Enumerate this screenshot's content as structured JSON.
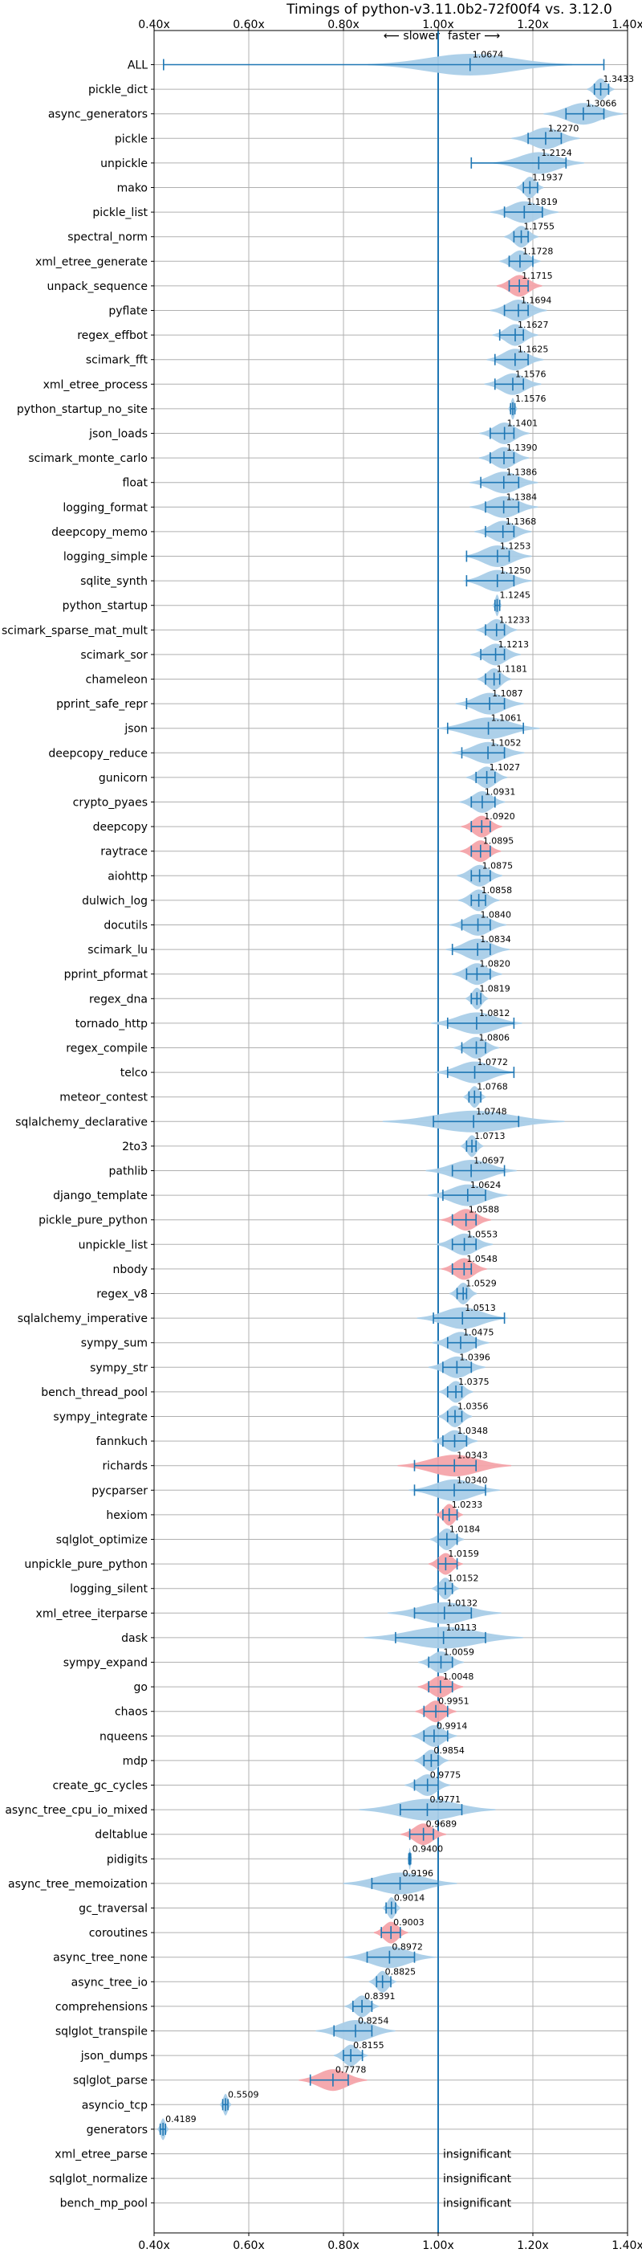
{
  "chart_data": {
    "type": "violin",
    "title": "Timings of python-v3.11.0b2-72f00f4 vs. 3.12.0",
    "direction_labels": {
      "slower": "⟵ slower",
      "faster": "faster ⟶"
    },
    "xlim": [
      0.4,
      1.4
    ],
    "xticks": [
      0.4,
      0.6,
      0.8,
      1.0,
      1.2,
      1.4
    ],
    "xtick_labels": [
      "0.40x",
      "0.60x",
      "0.80x",
      "1.00x",
      "1.20x",
      "1.40x"
    ],
    "reference": 1.0,
    "grid": true,
    "colors": {
      "faster": "#a9cde8",
      "slower": "#f4a4aa",
      "line": "#1f77b4",
      "grid": "#b0b0b0"
    },
    "insignificant_label": "insignificant",
    "benchmarks": [
      {
        "name": "ALL",
        "value": 1.0674,
        "low": 0.42,
        "high": 1.35,
        "spread": 0.09,
        "status": "faster",
        "label": "1.0674"
      },
      {
        "name": "pickle_dict",
        "value": 1.3433,
        "low": 1.33,
        "high": 1.36,
        "spread": 0.012,
        "status": "faster",
        "label": "1.3433"
      },
      {
        "name": "async_generators",
        "value": 1.3066,
        "low": 1.27,
        "high": 1.35,
        "spread": 0.035,
        "status": "faster",
        "label": "1.3066"
      },
      {
        "name": "pickle",
        "value": 1.227,
        "low": 1.19,
        "high": 1.26,
        "spread": 0.03,
        "status": "faster",
        "label": "1.2270"
      },
      {
        "name": "unpickle",
        "value": 1.2124,
        "low": 1.07,
        "high": 1.27,
        "spread": 0.04,
        "status": "faster",
        "label": "1.2124"
      },
      {
        "name": "mako",
        "value": 1.1937,
        "low": 1.18,
        "high": 1.21,
        "spread": 0.012,
        "status": "faster",
        "label": "1.1937"
      },
      {
        "name": "pickle_list",
        "value": 1.1819,
        "low": 1.14,
        "high": 1.22,
        "spread": 0.03,
        "status": "faster",
        "label": "1.1819"
      },
      {
        "name": "spectral_norm",
        "value": 1.1755,
        "low": 1.16,
        "high": 1.19,
        "spread": 0.015,
        "status": "faster",
        "label": "1.1755"
      },
      {
        "name": "xml_etree_generate",
        "value": 1.1728,
        "low": 1.15,
        "high": 1.2,
        "spread": 0.018,
        "status": "faster",
        "label": "1.1728"
      },
      {
        "name": "unpack_sequence",
        "value": 1.1715,
        "low": 1.15,
        "high": 1.19,
        "spread": 0.02,
        "status": "slower",
        "label": "1.1715"
      },
      {
        "name": "pyflate",
        "value": 1.1694,
        "low": 1.14,
        "high": 1.19,
        "spread": 0.025,
        "status": "faster",
        "label": "1.1694"
      },
      {
        "name": "regex_effbot",
        "value": 1.1627,
        "low": 1.13,
        "high": 1.18,
        "spread": 0.02,
        "status": "faster",
        "label": "1.1627"
      },
      {
        "name": "scimark_fft",
        "value": 1.1625,
        "low": 1.12,
        "high": 1.19,
        "spread": 0.025,
        "status": "faster",
        "label": "1.1625"
      },
      {
        "name": "xml_etree_process",
        "value": 1.1576,
        "low": 1.12,
        "high": 1.18,
        "spread": 0.025,
        "status": "faster",
        "label": "1.1576"
      },
      {
        "name": "python_startup_no_site",
        "value": 1.1576,
        "low": 1.153,
        "high": 1.162,
        "spread": 0.004,
        "status": "faster",
        "label": "1.1576"
      },
      {
        "name": "json_loads",
        "value": 1.1401,
        "low": 1.11,
        "high": 1.16,
        "spread": 0.022,
        "status": "faster",
        "label": "1.1401"
      },
      {
        "name": "scimark_monte_carlo",
        "value": 1.139,
        "low": 1.11,
        "high": 1.16,
        "spread": 0.022,
        "status": "faster",
        "label": "1.1390"
      },
      {
        "name": "float",
        "value": 1.1386,
        "low": 1.09,
        "high": 1.17,
        "spread": 0.03,
        "status": "faster",
        "label": "1.1386"
      },
      {
        "name": "logging_format",
        "value": 1.1384,
        "low": 1.1,
        "high": 1.17,
        "spread": 0.03,
        "status": "faster",
        "label": "1.1384"
      },
      {
        "name": "deepcopy_memo",
        "value": 1.1368,
        "low": 1.1,
        "high": 1.16,
        "spread": 0.025,
        "status": "faster",
        "label": "1.1368"
      },
      {
        "name": "logging_simple",
        "value": 1.1253,
        "low": 1.06,
        "high": 1.15,
        "spread": 0.03,
        "status": "faster",
        "label": "1.1253"
      },
      {
        "name": "sqlite_synth",
        "value": 1.125,
        "low": 1.06,
        "high": 1.16,
        "spread": 0.03,
        "status": "faster",
        "label": "1.1250"
      },
      {
        "name": "python_startup",
        "value": 1.1245,
        "low": 1.12,
        "high": 1.13,
        "spread": 0.004,
        "status": "faster",
        "label": "1.1245"
      },
      {
        "name": "scimark_sparse_mat_mult",
        "value": 1.1233,
        "low": 1.1,
        "high": 1.14,
        "spread": 0.018,
        "status": "faster",
        "label": "1.1233"
      },
      {
        "name": "scimark_sor",
        "value": 1.1213,
        "low": 1.09,
        "high": 1.14,
        "spread": 0.022,
        "status": "faster",
        "label": "1.1213"
      },
      {
        "name": "chameleon",
        "value": 1.1181,
        "low": 1.1,
        "high": 1.13,
        "spread": 0.015,
        "status": "faster",
        "label": "1.1181"
      },
      {
        "name": "pprint_safe_repr",
        "value": 1.1087,
        "low": 1.06,
        "high": 1.14,
        "spread": 0.03,
        "status": "faster",
        "label": "1.1087"
      },
      {
        "name": "json",
        "value": 1.1061,
        "low": 1.02,
        "high": 1.18,
        "spread": 0.045,
        "status": "faster",
        "label": "1.1061"
      },
      {
        "name": "deepcopy_reduce",
        "value": 1.1052,
        "low": 1.05,
        "high": 1.14,
        "spread": 0.032,
        "status": "faster",
        "label": "1.1052"
      },
      {
        "name": "gunicorn",
        "value": 1.1027,
        "low": 1.08,
        "high": 1.12,
        "spread": 0.018,
        "status": "faster",
        "label": "1.1027"
      },
      {
        "name": "crypto_pyaes",
        "value": 1.0931,
        "low": 1.07,
        "high": 1.12,
        "spread": 0.02,
        "status": "faster",
        "label": "1.0931"
      },
      {
        "name": "deepcopy",
        "value": 1.092,
        "low": 1.07,
        "high": 1.11,
        "spread": 0.018,
        "status": "slower",
        "label": "1.0920"
      },
      {
        "name": "raytrace",
        "value": 1.0895,
        "low": 1.07,
        "high": 1.11,
        "spread": 0.018,
        "status": "slower",
        "label": "1.0895"
      },
      {
        "name": "aiohttp",
        "value": 1.0875,
        "low": 1.07,
        "high": 1.11,
        "spread": 0.02,
        "status": "faster",
        "label": "1.0875"
      },
      {
        "name": "dulwich_log",
        "value": 1.0858,
        "low": 1.07,
        "high": 1.1,
        "spread": 0.018,
        "status": "faster",
        "label": "1.0858"
      },
      {
        "name": "docutils",
        "value": 1.084,
        "low": 1.05,
        "high": 1.11,
        "spread": 0.025,
        "status": "faster",
        "label": "1.0840"
      },
      {
        "name": "scimark_lu",
        "value": 1.0834,
        "low": 1.03,
        "high": 1.11,
        "spread": 0.028,
        "status": "faster",
        "label": "1.0834"
      },
      {
        "name": "pprint_pformat",
        "value": 1.082,
        "low": 1.06,
        "high": 1.11,
        "spread": 0.022,
        "status": "faster",
        "label": "1.0820"
      },
      {
        "name": "regex_dna",
        "value": 1.0819,
        "low": 1.07,
        "high": 1.09,
        "spread": 0.01,
        "status": "faster",
        "label": "1.0819"
      },
      {
        "name": "tornado_http",
        "value": 1.0812,
        "low": 1.02,
        "high": 1.16,
        "spread": 0.04,
        "status": "faster",
        "label": "1.0812"
      },
      {
        "name": "regex_compile",
        "value": 1.0806,
        "low": 1.05,
        "high": 1.1,
        "spread": 0.02,
        "status": "faster",
        "label": "1.0806"
      },
      {
        "name": "telco",
        "value": 1.0772,
        "low": 1.02,
        "high": 1.16,
        "spread": 0.035,
        "status": "faster",
        "label": "1.0772"
      },
      {
        "name": "meteor_contest",
        "value": 1.0768,
        "low": 1.065,
        "high": 1.09,
        "spread": 0.01,
        "status": "faster",
        "label": "1.0768"
      },
      {
        "name": "sqlalchemy_declarative",
        "value": 1.0748,
        "low": 0.99,
        "high": 1.17,
        "spread": 0.08,
        "status": "faster",
        "label": "1.0748"
      },
      {
        "name": "2to3",
        "value": 1.0713,
        "low": 1.06,
        "high": 1.08,
        "spread": 0.01,
        "status": "faster",
        "label": "1.0713"
      },
      {
        "name": "pathlib",
        "value": 1.0697,
        "low": 1.03,
        "high": 1.14,
        "spread": 0.04,
        "status": "faster",
        "label": "1.0697"
      },
      {
        "name": "django_template",
        "value": 1.0624,
        "low": 1.01,
        "high": 1.1,
        "spread": 0.035,
        "status": "faster",
        "label": "1.0624"
      },
      {
        "name": "pickle_pure_python",
        "value": 1.0588,
        "low": 1.03,
        "high": 1.08,
        "spread": 0.022,
        "status": "slower",
        "label": "1.0588"
      },
      {
        "name": "unpickle_list",
        "value": 1.0553,
        "low": 1.03,
        "high": 1.08,
        "spread": 0.025,
        "status": "faster",
        "label": "1.0553"
      },
      {
        "name": "nbody",
        "value": 1.0548,
        "low": 1.03,
        "high": 1.07,
        "spread": 0.02,
        "status": "slower",
        "label": "1.0548"
      },
      {
        "name": "regex_v8",
        "value": 1.0529,
        "low": 1.04,
        "high": 1.06,
        "spread": 0.012,
        "status": "faster",
        "label": "1.0529"
      },
      {
        "name": "sqlalchemy_imperative",
        "value": 1.0513,
        "low": 0.99,
        "high": 1.14,
        "spread": 0.04,
        "status": "faster",
        "label": "1.0513"
      },
      {
        "name": "sympy_sum",
        "value": 1.0475,
        "low": 1.02,
        "high": 1.08,
        "spread": 0.025,
        "status": "faster",
        "label": "1.0475"
      },
      {
        "name": "sympy_str",
        "value": 1.0396,
        "low": 1.01,
        "high": 1.07,
        "spread": 0.025,
        "status": "faster",
        "label": "1.0396"
      },
      {
        "name": "bench_thread_pool",
        "value": 1.0375,
        "low": 1.02,
        "high": 1.05,
        "spread": 0.015,
        "status": "faster",
        "label": "1.0375"
      },
      {
        "name": "sympy_integrate",
        "value": 1.0356,
        "low": 1.02,
        "high": 1.05,
        "spread": 0.015,
        "status": "faster",
        "label": "1.0356"
      },
      {
        "name": "fannkuch",
        "value": 1.0348,
        "low": 1.01,
        "high": 1.06,
        "spread": 0.02,
        "status": "faster",
        "label": "1.0348"
      },
      {
        "name": "richards",
        "value": 1.0343,
        "low": 0.95,
        "high": 1.08,
        "spread": 0.05,
        "status": "slower",
        "label": "1.0343"
      },
      {
        "name": "pycparser",
        "value": 1.034,
        "low": 0.95,
        "high": 1.1,
        "spread": 0.04,
        "status": "faster",
        "label": "1.0340"
      },
      {
        "name": "hexiom",
        "value": 1.0233,
        "low": 1.01,
        "high": 1.04,
        "spread": 0.012,
        "status": "slower",
        "label": "1.0233"
      },
      {
        "name": "sqlglot_optimize",
        "value": 1.0184,
        "low": 1.0,
        "high": 1.04,
        "spread": 0.015,
        "status": "faster",
        "label": "1.0184"
      },
      {
        "name": "unpickle_pure_python",
        "value": 1.0159,
        "low": 1.0,
        "high": 1.04,
        "spread": 0.015,
        "status": "slower",
        "label": "1.0159"
      },
      {
        "name": "logging_silent",
        "value": 1.0152,
        "low": 1.0,
        "high": 1.03,
        "spread": 0.012,
        "status": "faster",
        "label": "1.0152"
      },
      {
        "name": "xml_etree_iterparse",
        "value": 1.0132,
        "low": 0.95,
        "high": 1.07,
        "spread": 0.05,
        "status": "faster",
        "label": "1.0132"
      },
      {
        "name": "dask",
        "value": 1.0113,
        "low": 0.91,
        "high": 1.1,
        "spread": 0.07,
        "status": "faster",
        "label": "1.0113"
      },
      {
        "name": "sympy_expand",
        "value": 1.0059,
        "low": 0.98,
        "high": 1.03,
        "spread": 0.02,
        "status": "faster",
        "label": "1.0059"
      },
      {
        "name": "go",
        "value": 1.0048,
        "low": 0.98,
        "high": 1.03,
        "spread": 0.02,
        "status": "slower",
        "label": "1.0048"
      },
      {
        "name": "chaos",
        "value": 0.9951,
        "low": 0.97,
        "high": 1.02,
        "spread": 0.018,
        "status": "slower",
        "label": "0.9951"
      },
      {
        "name": "nqueens",
        "value": 0.9914,
        "low": 0.97,
        "high": 1.02,
        "spread": 0.02,
        "status": "faster",
        "label": "0.9914"
      },
      {
        "name": "mdp",
        "value": 0.9854,
        "low": 0.97,
        "high": 1.0,
        "spread": 0.015,
        "status": "faster",
        "label": "0.9854"
      },
      {
        "name": "create_gc_cycles",
        "value": 0.9775,
        "low": 0.95,
        "high": 1.0,
        "spread": 0.02,
        "status": "faster",
        "label": "0.9775"
      },
      {
        "name": "async_tree_cpu_io_mixed",
        "value": 0.9771,
        "low": 0.92,
        "high": 1.05,
        "spread": 0.06,
        "status": "faster",
        "label": "0.9771"
      },
      {
        "name": "deltablue",
        "value": 0.9689,
        "low": 0.94,
        "high": 0.99,
        "spread": 0.02,
        "status": "slower",
        "label": "0.9689"
      },
      {
        "name": "pidigits",
        "value": 0.94,
        "low": 0.938,
        "high": 0.942,
        "spread": 0.002,
        "status": "faster",
        "label": "0.9400"
      },
      {
        "name": "async_tree_memoization",
        "value": 0.9196,
        "low": 0.86,
        "high": 1.0,
        "spread": 0.05,
        "status": "faster",
        "label": "0.9196"
      },
      {
        "name": "gc_traversal",
        "value": 0.9014,
        "low": 0.89,
        "high": 0.91,
        "spread": 0.008,
        "status": "faster",
        "label": "0.9014"
      },
      {
        "name": "coroutines",
        "value": 0.9003,
        "low": 0.88,
        "high": 0.92,
        "spread": 0.015,
        "status": "slower",
        "label": "0.9003"
      },
      {
        "name": "async_tree_none",
        "value": 0.8972,
        "low": 0.85,
        "high": 0.95,
        "spread": 0.04,
        "status": "faster",
        "label": "0.8972"
      },
      {
        "name": "async_tree_io",
        "value": 0.8825,
        "low": 0.87,
        "high": 0.9,
        "spread": 0.012,
        "status": "faster",
        "label": "0.8825"
      },
      {
        "name": "comprehensions",
        "value": 0.8391,
        "low": 0.82,
        "high": 0.86,
        "spread": 0.015,
        "status": "faster",
        "label": "0.8391"
      },
      {
        "name": "sqlglot_transpile",
        "value": 0.8254,
        "low": 0.78,
        "high": 0.86,
        "spread": 0.035,
        "status": "faster",
        "label": "0.8254"
      },
      {
        "name": "json_dumps",
        "value": 0.8155,
        "low": 0.8,
        "high": 0.84,
        "spread": 0.015,
        "status": "faster",
        "label": "0.8155"
      },
      {
        "name": "sqlglot_parse",
        "value": 0.7778,
        "low": 0.73,
        "high": 0.81,
        "spread": 0.03,
        "status": "slower",
        "label": "0.7778"
      },
      {
        "name": "asyncio_tcp",
        "value": 0.5509,
        "low": 0.545,
        "high": 0.556,
        "spread": 0.005,
        "status": "faster",
        "label": "0.5509"
      },
      {
        "name": "generators",
        "value": 0.4189,
        "low": 0.413,
        "high": 0.424,
        "spread": 0.005,
        "status": "faster",
        "label": "0.4189"
      },
      {
        "name": "xml_etree_parse",
        "status": "insignificant"
      },
      {
        "name": "sqlglot_normalize",
        "status": "insignificant"
      },
      {
        "name": "bench_mp_pool",
        "status": "insignificant"
      }
    ]
  }
}
